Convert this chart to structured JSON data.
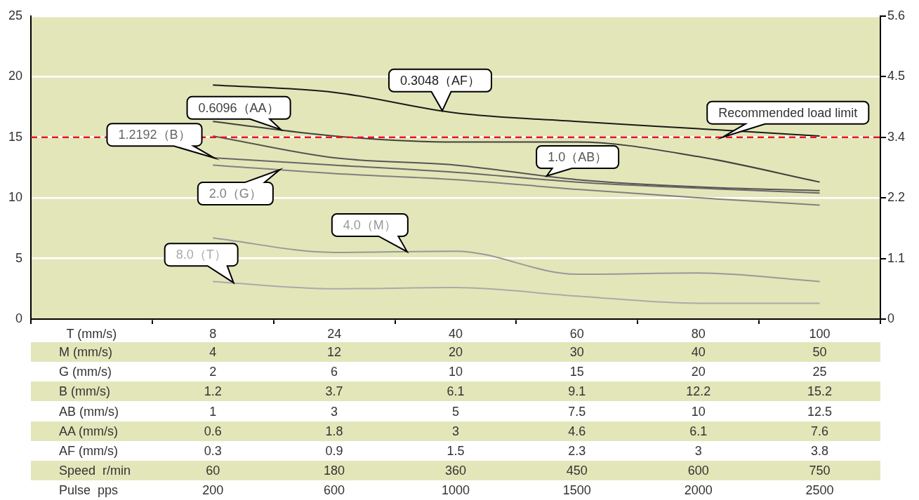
{
  "chart_data": {
    "type": "line",
    "categories": [
      "T (mm/s)",
      "8",
      "24",
      "40",
      "60",
      "80",
      "100"
    ],
    "series": [
      {
        "name": "0.3048（AF）",
        "color": "#1a1a1a",
        "values": [
          null,
          19.3,
          18.7,
          17.0,
          16.3,
          15.7,
          15.1
        ]
      },
      {
        "name": "0.6096（AA）",
        "color": "#404040",
        "values": [
          null,
          16.3,
          15.1,
          14.6,
          14.6,
          13.4,
          11.3
        ]
      },
      {
        "name": "1.0（AB）",
        "color": "#555555",
        "values": [
          null,
          15.1,
          13.3,
          12.7,
          11.5,
          10.9,
          10.6
        ]
      },
      {
        "name": "1.2192（B）",
        "color": "#666666",
        "values": [
          null,
          13.3,
          12.7,
          12.1,
          11.3,
          10.8,
          10.4
        ]
      },
      {
        "name": "2.0（G）",
        "color": "#808080",
        "values": [
          null,
          12.7,
          12.0,
          11.5,
          10.7,
          10.0,
          9.4
        ]
      },
      {
        "name": "4.0（M）",
        "color": "#999999",
        "values": [
          null,
          6.7,
          5.5,
          5.6,
          3.7,
          3.8,
          3.1
        ]
      },
      {
        "name": "8.0（T）",
        "color": "#aaaaaa",
        "values": [
          null,
          3.1,
          2.5,
          2.6,
          1.9,
          1.3,
          1.3
        ]
      }
    ],
    "ylim": [
      0,
      25
    ],
    "yticks": [
      0,
      5,
      10,
      15,
      20,
      25
    ],
    "y2lim": [
      0,
      5.6
    ],
    "y2ticks": [
      0,
      {
        "value": 1.12,
        "label": "1.1"
      },
      {
        "value": 2.24,
        "label": "2.2"
      },
      {
        "value": 3.36,
        "label": "3.4"
      },
      {
        "value": 4.48,
        "label": "4.5"
      },
      5.6
    ],
    "grid": "y",
    "ref_lines": [
      {
        "axis": "y",
        "value": 15,
        "label": "Recommended load limit",
        "color": "#e8141c",
        "line_style": "dashed"
      }
    ],
    "annotations": [
      "M (mm/s)",
      "4",
      "12",
      "20",
      "30",
      "40",
      "50",
      "G (mm/s)",
      "2",
      "6",
      "10",
      "15",
      "20",
      "25",
      "B (mm/s)",
      "1.2",
      "3.7",
      "6.1",
      "9.1",
      "12.2",
      "15.2",
      "AB (mm/s)",
      "1",
      "3",
      "5",
      "7.5",
      "10",
      "12.5",
      "AA (mm/s)",
      "0.6",
      "1.8",
      "3",
      "4.6",
      "6.1",
      "7.6",
      "AF (mm/s)",
      "0.3",
      "0.9",
      "1.5",
      "2.3",
      "3",
      "3.8",
      "Speed  r/min",
      "60",
      "180",
      "360",
      "450",
      "600",
      "750",
      "Pulse  pps",
      "200",
      "600",
      "1000",
      "1500",
      "2000",
      "2500"
    ]
  }
}
